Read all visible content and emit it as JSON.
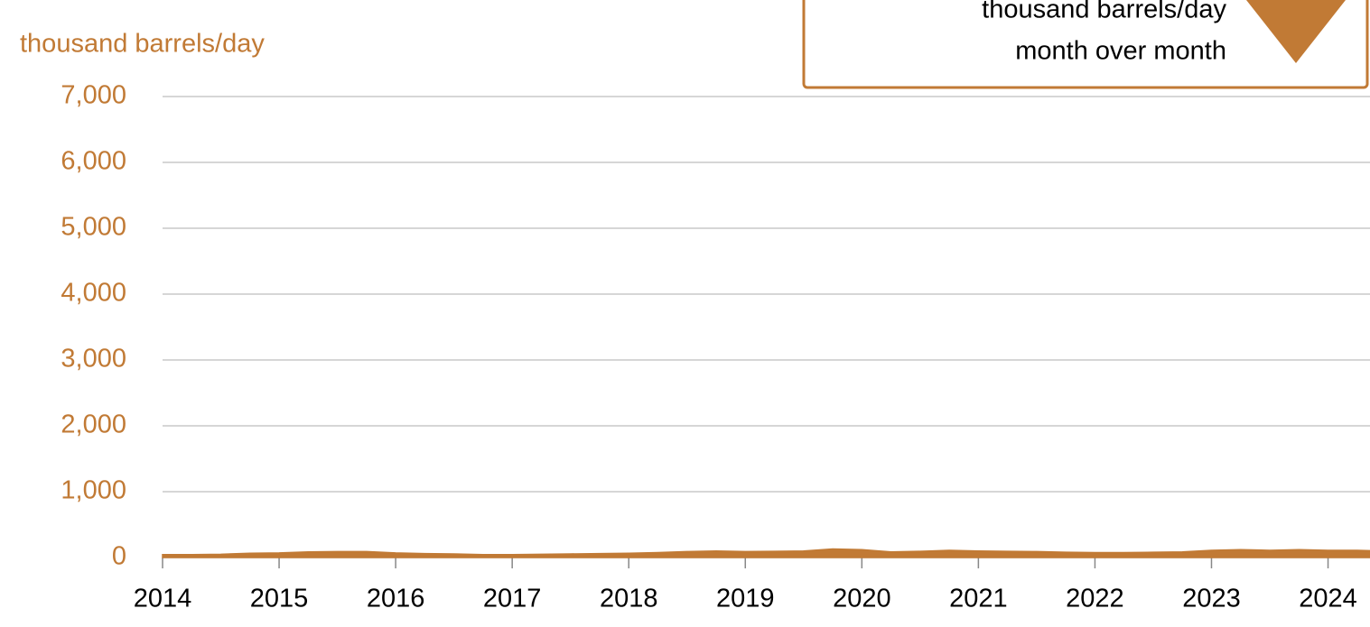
{
  "chart_data": {
    "type": "area",
    "subtitle": "thousand barrels/day",
    "annotation": {
      "lines": [
        "thousand barrels/day",
        "month over month"
      ],
      "direction": "down"
    },
    "color": "#c17a35",
    "x": [
      2014,
      2014.25,
      2014.5,
      2014.75,
      2015,
      2015.25,
      2015.5,
      2015.75,
      2016,
      2016.25,
      2016.5,
      2016.75,
      2017,
      2017.25,
      2017.5,
      2017.75,
      2018,
      2018.25,
      2018.5,
      2018.75,
      2019,
      2019.25,
      2019.5,
      2019.75,
      2020,
      2020.25,
      2020.5,
      2020.75,
      2021,
      2021.25,
      2021.5,
      2021.75,
      2022,
      2022.25,
      2022.5,
      2022.75,
      2023,
      2023.25,
      2023.5,
      2023.75,
      2024,
      2024.25,
      2024.36
    ],
    "values": [
      45,
      45,
      50,
      65,
      70,
      85,
      90,
      90,
      70,
      60,
      55,
      45,
      45,
      50,
      55,
      60,
      65,
      75,
      90,
      100,
      90,
      95,
      100,
      130,
      120,
      85,
      95,
      110,
      100,
      95,
      90,
      80,
      75,
      75,
      80,
      85,
      110,
      120,
      110,
      120,
      110,
      110,
      105
    ],
    "xlim": [
      2014,
      2024.36
    ],
    "xticks": [
      2014,
      2015,
      2016,
      2017,
      2018,
      2019,
      2020,
      2021,
      2022,
      2023,
      2024
    ],
    "ylim": [
      0,
      7000
    ],
    "yticks": [
      0,
      {
        "value": 1000,
        "label": "1,000"
      },
      {
        "value": 2000,
        "label": "2,000"
      },
      {
        "value": 3000,
        "label": "3,000"
      },
      {
        "value": 4000,
        "label": "4,000"
      },
      {
        "value": 5000,
        "label": "5,000"
      },
      {
        "value": 6000,
        "label": "6,000"
      },
      {
        "value": 7000,
        "label": "7,000"
      }
    ],
    "grid": true
  }
}
